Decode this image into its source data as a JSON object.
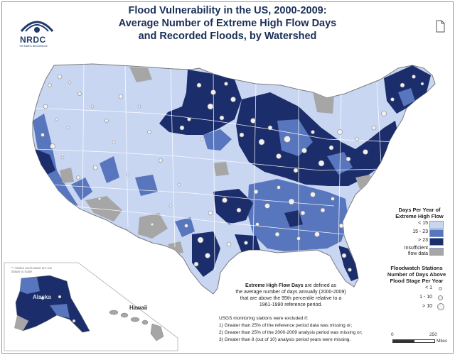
{
  "header": {
    "title_line1": "Flood Vulnerability in the US, 2000-2009:",
    "title_line2": "Average Number of Extreme High Flow Days",
    "title_line3": "and Recorded Floods, by Watershed"
  },
  "logo": {
    "name": "NRDC",
    "tagline": "The Earth's Best Defense"
  },
  "colors": {
    "low": "#c8d6f2",
    "mid": "#5876bd",
    "high": "#1c2d6b",
    "insufficient": "#a6a6a6",
    "boundary": "#ffffff",
    "water": "#ffffff",
    "station_fill": "#f0f0f0",
    "station_stroke": "#8a8a8a"
  },
  "legend": {
    "title_line1": "Days Per Year of",
    "title_line2": "Extreme High Flow",
    "items": [
      {
        "label": "< 15",
        "color": "#c8d6f2"
      },
      {
        "label": "15 - 23",
        "color": "#5876bd"
      },
      {
        "label": "> 23",
        "color": "#1c2d6b"
      },
      {
        "label_line1": "Insufficient",
        "label_line2": "flow data",
        "color": "#a6a6a6"
      }
    ]
  },
  "stations_legend": {
    "title_line1": "Floodwatch Stations",
    "title_line2": "Number of Days Above",
    "title_line3": "Flood Stage Per Year",
    "items": [
      {
        "label": "< 1",
        "size": "small"
      },
      {
        "label": "1 - 10",
        "size": "medium"
      },
      {
        "label": "> 10",
        "size": "large"
      }
    ]
  },
  "definition": {
    "term": "Extreme High Flow Days",
    "text_line1": " are defined as",
    "text_line2": "the average number of days annually (2000-2009)",
    "text_line3": "that are above the 95th percentile relative to a",
    "text_line4": "1961-1990 reference period."
  },
  "usgs_note": {
    "heading": "USGS monitoring stations were excluded if:",
    "items": [
      "1) Greater than 25% of the reference period data was missing or;",
      "2) Greater than 25% of the 2000-2009 analysis period was missing or;",
      "3) Greater than 8 (out of 10) analysis period years were missing."
    ]
  },
  "insets": {
    "note": "** Alaska and Hawaii are not drawn to scale",
    "alaska": "Alaska",
    "hawaii": "Hawaii"
  },
  "scale_bar": {
    "start": "0",
    "end": "250",
    "unit": "Miles"
  }
}
